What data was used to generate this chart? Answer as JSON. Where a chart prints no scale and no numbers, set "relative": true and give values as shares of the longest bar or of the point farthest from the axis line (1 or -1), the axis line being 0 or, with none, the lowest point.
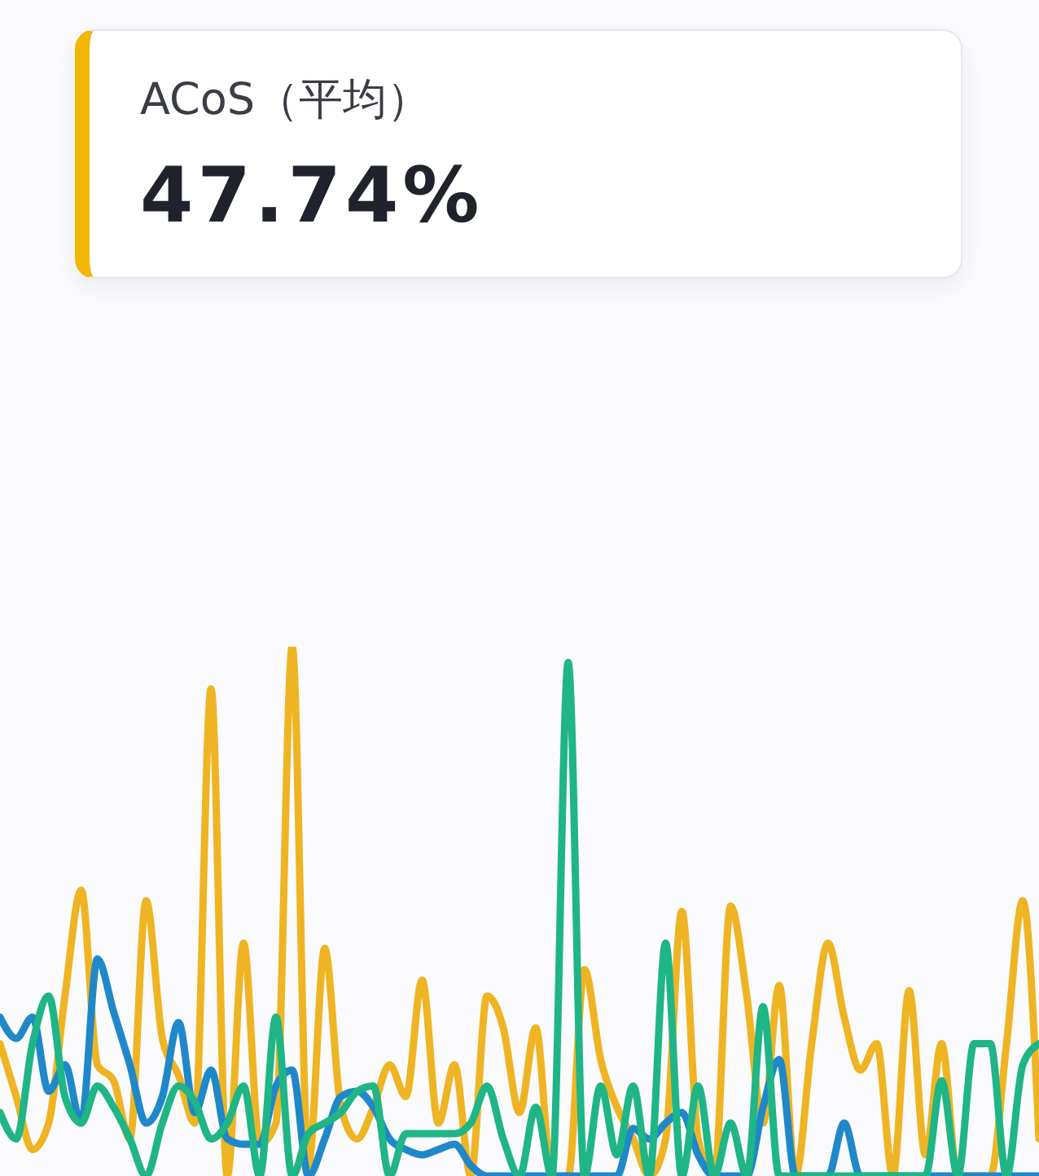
{
  "chart_data": [
    {
      "type": "other",
      "title": "ACoS（平均）",
      "annotations": [
        "47.74%"
      ]
    },
    {
      "type": "line",
      "relative": true,
      "categories": [
        null,
        null,
        null,
        null,
        null,
        null,
        null,
        null,
        null,
        null,
        null,
        null,
        null,
        null,
        null,
        null,
        null,
        null,
        null,
        null,
        null,
        null,
        null,
        null,
        null,
        null,
        null,
        null,
        null,
        null,
        null,
        null,
        null,
        null,
        null,
        null,
        null,
        null,
        null,
        null,
        null,
        null,
        null,
        null,
        null,
        null,
        null,
        null,
        null,
        null,
        null,
        null,
        null,
        null,
        null,
        null,
        null,
        null,
        null,
        null,
        null,
        null,
        null,
        null,
        null
      ],
      "series": [
        {
          "color": "#efb423",
          "values": [
            0.25,
            0.15,
            0.05,
            0.1,
            0.34,
            0.54,
            0.21,
            0.18,
            0.07,
            0.52,
            0.26,
            0.19,
            0.1,
            0.92,
            0,
            0.44,
            0.06,
            0.1,
            1.0,
            0.02,
            0.43,
            0.13,
            0.07,
            0.13,
            0.21,
            0.15,
            0.37,
            0.1,
            0.21,
            0,
            0.34,
            0.28,
            0.12,
            0.28,
            0,
            0,
            0.39,
            0.22,
            0.13,
            0.07,
            0,
            0.07,
            0.5,
            0.07,
            0,
            0.51,
            0.34,
            0.1,
            0.36,
            0,
            0.25,
            0.44,
            0.3,
            0.2,
            0.25,
            0,
            0.35,
            0.04,
            0.25,
            0,
            0,
            0,
            0.25,
            0.52,
            0.07
          ]
        },
        {
          "color": "#1f88c9",
          "values": [
            0.3,
            0.26,
            0.3,
            0.16,
            0.21,
            0.1,
            0.41,
            0.31,
            0.21,
            0.1,
            0.15,
            0.29,
            0.12,
            0.2,
            0.07,
            0.06,
            0.06,
            0.17,
            0.2,
            0,
            0.07,
            0.15,
            0.16,
            0.13,
            0.07,
            0.05,
            0.04,
            0.05,
            0.06,
            0.02,
            0,
            0,
            0,
            0,
            0,
            0,
            0,
            0,
            0,
            0.09,
            0.07,
            0.1,
            0.12,
            0.04,
            0,
            0,
            0,
            0.13,
            0.22,
            0,
            0,
            0,
            0.1,
            0,
            0,
            0,
            0,
            0,
            0,
            0,
            0,
            0,
            0,
            0,
            0
          ]
        },
        {
          "color": "#1fb586",
          "values": [
            0.12,
            0.07,
            0.25,
            0.34,
            0.15,
            0.1,
            0.17,
            0.13,
            0.07,
            0,
            0.1,
            0.17,
            0.14,
            0.07,
            0.1,
            0.17,
            0,
            0.3,
            0,
            0.08,
            0.1,
            0.12,
            0.16,
            0.17,
            0,
            0.08,
            0.08,
            0.08,
            0.08,
            0.1,
            0.17,
            0.07,
            0,
            0.13,
            0,
            0.97,
            0,
            0.17,
            0.04,
            0.17,
            0,
            0.44,
            0,
            0.17,
            0,
            0.1,
            0,
            0.32,
            0,
            0,
            0,
            0,
            0,
            0,
            0,
            0,
            0,
            0,
            0.18,
            0,
            0.25,
            0.25,
            0,
            0.21,
            0.25
          ]
        }
      ]
    }
  ]
}
